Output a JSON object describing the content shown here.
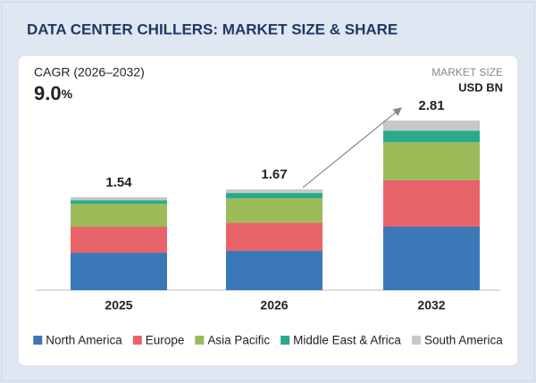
{
  "chart_data": {
    "type": "stacked-bar",
    "title": "DATA CENTER CHILLERS: MARKET SIZE & SHARE",
    "cagr_label": "CAGR (2026–2032)",
    "cagr": "9.0",
    "cagr_unit": "%",
    "unit_label": "MARKET SIZE",
    "unit": "USD BN",
    "categories": [
      "2025",
      "2026",
      "2032"
    ],
    "totals": [
      1.54,
      1.67,
      2.81
    ],
    "series": [
      {
        "name": "North America",
        "color": "#3a78b8",
        "values": [
          0.62,
          0.65,
          1.05
        ]
      },
      {
        "name": "Europe",
        "color": "#e8646a",
        "values": [
          0.43,
          0.47,
          0.77
        ]
      },
      {
        "name": "Asia Pacific",
        "color": "#9bbb59",
        "values": [
          0.38,
          0.4,
          0.63
        ]
      },
      {
        "name": "Middle East & Africa",
        "color": "#2aaa8a",
        "values": [
          0.06,
          0.09,
          0.19
        ]
      },
      {
        "name": "South America",
        "color": "#c8c8c8",
        "values": [
          0.05,
          0.06,
          0.17
        ]
      }
    ]
  }
}
